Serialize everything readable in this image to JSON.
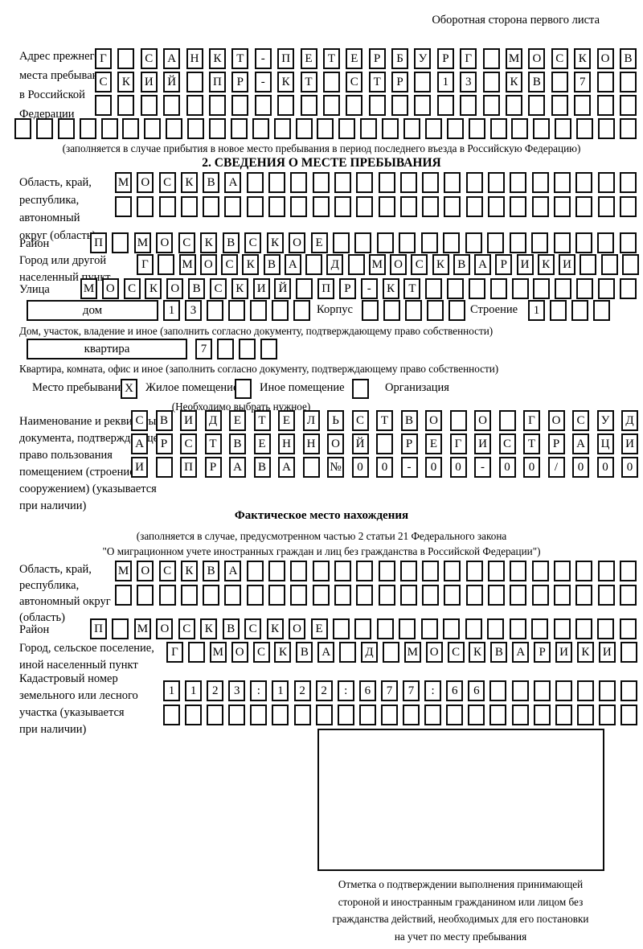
{
  "header": {
    "note": "Оборотная сторона первого листа"
  },
  "titles": {
    "section2": "2. СВЕДЕНИЯ О МЕСТЕ ПРЕБЫВАНИЯ",
    "actual_location": "Фактическое место нахождения"
  },
  "labels": {
    "prev_address": [
      "Адрес прежнего",
      "места пребывания",
      "в Российской",
      "Федерации"
    ],
    "oblast1": [
      "Область, край,",
      "республика,",
      "автономный",
      "округ (область)"
    ],
    "raion1": "Район",
    "gorod1": [
      "Город или другой",
      "населенный пункт"
    ],
    "ulitsa": "Улица",
    "dom_box": "дом",
    "korpus": "Корпус",
    "stroenie": "Строение",
    "kvartira_box": "квартира",
    "stay_place": "Место пребывания:",
    "residential": "Жилое помещение",
    "other_premise": "Иное помещение",
    "organization": "Организация",
    "doc": [
      "Наименование и реквизиты",
      "документа, подтверждающего",
      "право пользования",
      "помещением (строением,",
      "сооружением) (указывается",
      "при наличии)"
    ],
    "oblast2": [
      "Область, край,",
      "республика,",
      "автономный округ",
      "(область)"
    ],
    "raion2": "Район",
    "gorod2": [
      "Город, сельское поселение,",
      "иной населенный пункт"
    ],
    "kadastr": [
      "Кадастровый номер",
      "земельного или лесного",
      "участка (указывается",
      "при наличии)"
    ]
  },
  "notes": {
    "prev_address": "(заполняется в случае прибытия в новое место пребывания в период последнего въезда в Российскую Федерацию)",
    "dom": "Дом, участок, владение и иное (заполнить согласно документу, подтверждающему право собственности)",
    "kvartira": "Квартира, комната, офис и иное (заполнить согласно документу, подтверждающему право собственности)",
    "choose": "(Необходимо выбрать нужное)",
    "actual1": "(заполняется в случае, предусмотренном частью 2 статьи 21 Федерального закона",
    "actual2": "\"О миграционном учете иностранных граждан и лиц без гражданства в Российской Федерации\")",
    "mark": [
      "Отметка о подтверждении выполнения принимающей",
      "стороной и иностранным гражданином или лицом без",
      "гражданства действий, необходимых для его постановки",
      "на учет по месту пребывания"
    ]
  },
  "checkboxes": {
    "residential": "X",
    "other_premise": "",
    "organization": ""
  },
  "grids": {
    "prev_row1": {
      "count": 24,
      "text": "Г САНКТ-ПЕТЕРБУРГ МОСКОВ"
    },
    "prev_row2": {
      "count": 24,
      "text": "СКИЙ ПР-КТ СТР 13 КВ 7"
    },
    "prev_row3": {
      "count": 24,
      "text": ""
    },
    "prev_row4": {
      "count": 29,
      "text": ""
    },
    "oblast1_row1": {
      "count": 24,
      "text": "МОСКВА"
    },
    "oblast1_row2": {
      "count": 24,
      "text": ""
    },
    "raion1": {
      "count": 25,
      "text": "П МОСКВСКОЕ"
    },
    "gorod1": {
      "count": 24,
      "text": "Г МОСКВА Д МОСКВАРИКИ"
    },
    "ulitsa": {
      "count": 26,
      "text": "МОСКОВСКИЙ ПР-КТ"
    },
    "dom_num": {
      "count": 7,
      "text": "13"
    },
    "korpus_num": {
      "count": 5,
      "text": ""
    },
    "stroenie_num": {
      "count": 4,
      "text": "1"
    },
    "kvartira_num": {
      "count": 4,
      "text": "7"
    },
    "doc_row1": {
      "count": 21,
      "text": "СВИДЕТЕЛЬСТВО О ГОСУД"
    },
    "doc_row2": {
      "count": 21,
      "text": "АРСТВЕННОЙ РЕГИСТРАЦИ"
    },
    "doc_row3": {
      "count": 21,
      "text": "И ПРАВА №00-00-00/000"
    },
    "oblast2_row1": {
      "count": 24,
      "text": "МОСКВА"
    },
    "oblast2_row2": {
      "count": 24,
      "text": ""
    },
    "raion2": {
      "count": 25,
      "text": "П МОСКВСКОЕ"
    },
    "gorod2": {
      "count": 22,
      "text": "Г МОСКВА Д МОСКВАРИКИ"
    },
    "kadastr_row1": {
      "count": 22,
      "text": "1123:122:677:66"
    },
    "kadastr_row2": {
      "count": 22,
      "text": ""
    }
  }
}
